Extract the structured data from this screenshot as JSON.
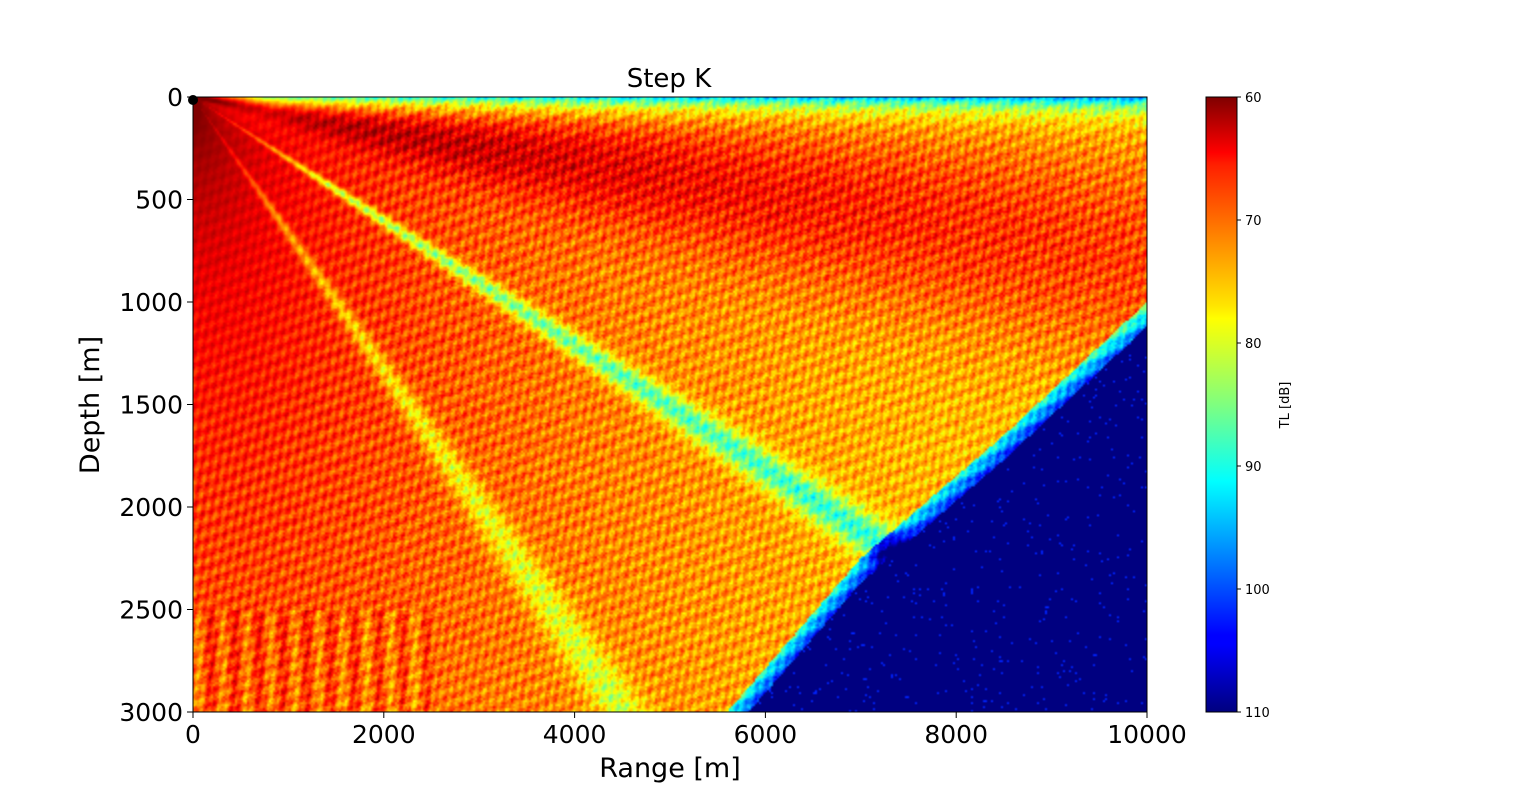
{
  "chart_data": {
    "type": "heatmap",
    "title": "Step K",
    "xlabel": "Range [m]",
    "ylabel": "Depth [m]",
    "xlim": [
      0,
      10000
    ],
    "ylim": [
      3000,
      0
    ],
    "y_inverted": true,
    "xticks": [
      0,
      2000,
      4000,
      6000,
      8000,
      10000
    ],
    "xtick_labels": [
      "0",
      "2000",
      "4000",
      "6000",
      "8000",
      "10000"
    ],
    "yticks": [
      0,
      500,
      1000,
      1500,
      2000,
      2500,
      3000
    ],
    "ytick_labels": [
      "0",
      "500",
      "1000",
      "1500",
      "2000",
      "2500",
      "3000"
    ],
    "colormap": "jet",
    "colorbar": {
      "label": "TL [dB]",
      "range": [
        60,
        110
      ],
      "reversed": true,
      "ticks": [
        60,
        70,
        80,
        90,
        100,
        110
      ],
      "tick_labels": [
        "60",
        "70",
        "80",
        "90",
        "100",
        "110"
      ]
    },
    "source": {
      "range": 0,
      "depth": 0
    },
    "field_description": {
      "beams": [
        {
          "angle_deg_from_surface": 9.6,
          "tl_center": 62,
          "tl_edge": 88,
          "width_deg": 10
        },
        {
          "angle_deg_from_surface": 33,
          "tl_center": 86,
          "tl_edge": 72,
          "width_deg": 3
        },
        {
          "angle_deg_from_surface": 54,
          "tl_center": 80,
          "tl_edge": 70,
          "width_deg": 4
        }
      ],
      "shadow_zone_boundary": [
        [
          5600,
          3000
        ],
        [
          7000,
          2250
        ],
        [
          8500,
          1650
        ],
        [
          10000,
          1000
        ]
      ],
      "shadow_zone_tl": 110,
      "near_surface_tl": 88
    }
  }
}
